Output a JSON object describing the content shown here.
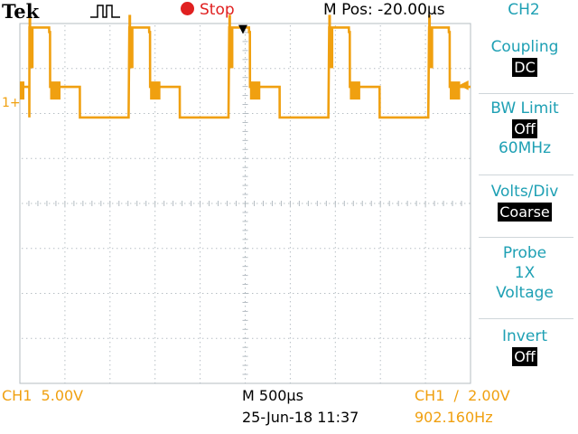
{
  "header": {
    "brand": "Tek",
    "run_status": "Stop",
    "mpos": "M Pos: -20.00µs",
    "channel": "CH2"
  },
  "menu": {
    "coupling": {
      "label": "Coupling",
      "value": "DC"
    },
    "bw_limit": {
      "label": "BW Limit",
      "value": "Off",
      "sub": "60MHz"
    },
    "volts_div": {
      "label": "Volts/Div",
      "value": "Coarse"
    },
    "probe": {
      "label": "Probe",
      "line1": "1X",
      "line2": "Voltage"
    },
    "invert": {
      "label": "Invert",
      "value": "Off"
    }
  },
  "markers": {
    "ch1_ground": "1+",
    "trigger_pos": "▼",
    "trigger_level": "◀"
  },
  "footer": {
    "ch1_scale": "CH1  5.00V",
    "timebase": "M 500µs",
    "datetime": "25-Jun-18 11:37",
    "trigger": "CH1  ∕  2.00V",
    "frequency": "902.160Hz"
  },
  "colors": {
    "trace": "#f0a010",
    "menu_text": "#1ea0b4",
    "graticule": "#b4bcc2",
    "stop": "#e02020"
  },
  "chart_data": {
    "type": "line",
    "channel": "CH1",
    "volts_per_div": 5.0,
    "time_per_div_us": 500,
    "x_unit": "µs (relative to left screen edge)",
    "y_unit": "V",
    "grid": true,
    "divisions": {
      "x": 10,
      "y": 8
    },
    "period_us": 1108.5,
    "frequency_hz": 902.16,
    "low_level_v": -1.5,
    "mid_level_v": 1.9,
    "high_level_v": 8.5,
    "cycle_template": [
      {
        "t": 0,
        "v": 8.5
      },
      {
        "t": 220,
        "v": 8.0
      },
      {
        "t": 230,
        "v": 1.9
      },
      {
        "t": 550,
        "v": 1.9
      },
      {
        "t": 560,
        "v": -1.5
      },
      {
        "t": 1100,
        "v": -1.5
      }
    ]
  }
}
